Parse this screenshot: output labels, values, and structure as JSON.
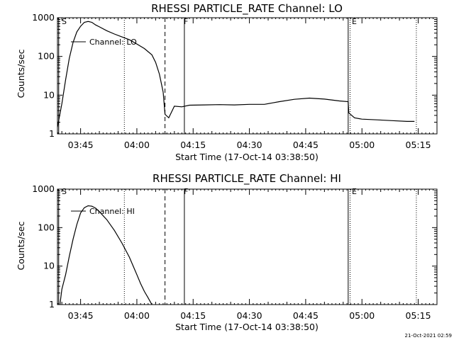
{
  "chart_data": [
    {
      "type": "line",
      "title": "RHESSI PARTICLE_RATE Channel: LO",
      "xlabel": "Start Time (17-Oct-14 03:38:50)",
      "ylabel": "Counts/sec",
      "y_scale": "log",
      "ylim": [
        1,
        1000
      ],
      "y_ticks": [
        1,
        10,
        100,
        1000
      ],
      "y_tick_labels": [
        "1",
        "10",
        "100",
        "1000"
      ],
      "xlim": [
        "03:38:50",
        "05:20:00"
      ],
      "x_tick_labels": [
        "03:45",
        "04:00",
        "04:15",
        "04:30",
        "04:45",
        "05:00",
        "05:15"
      ],
      "grid": false,
      "legend": {
        "position": "top-left",
        "entries": [
          "Channel: LO"
        ]
      },
      "markers": [
        {
          "label": "S",
          "time": "03:39:10",
          "style": "solid"
        },
        {
          "label": "",
          "time": "03:56:40",
          "style": "dotted"
        },
        {
          "label": "",
          "time": "04:07:30",
          "style": "dashed"
        },
        {
          "label": "F",
          "time": "04:12:40",
          "style": "solid"
        },
        {
          "label": "E",
          "time": "04:56:20",
          "style": "solid"
        },
        {
          "label": "",
          "time": "04:56:50",
          "style": "dotted"
        },
        {
          "label": "",
          "time": "05:14:30",
          "style": "dotted"
        }
      ],
      "series": [
        {
          "name": "Channel: LO",
          "x": [
            "03:38:50",
            "03:40:00",
            "03:41:00",
            "03:42:00",
            "03:43:00",
            "03:44:00",
            "03:45:00",
            "03:46:00",
            "03:47:00",
            "03:48:00",
            "03:49:00",
            "03:50:00",
            "03:52:00",
            "03:54:00",
            "03:56:00",
            "03:58:00",
            "04:00:00",
            "04:02:00",
            "04:04:00",
            "04:05:00",
            "04:06:00",
            "04:07:00",
            "04:07:30",
            "04:08:30",
            "04:10:00",
            "04:12:00",
            "04:14:00",
            "04:18:00",
            "04:22:00",
            "04:26:00",
            "04:30:00",
            "04:34:00",
            "04:38:00",
            "04:42:00",
            "04:46:00",
            "04:50:00",
            "04:54:00",
            "04:56:20",
            "04:56:30",
            "04:58:00",
            "05:00:00",
            "05:04:00",
            "05:08:00",
            "05:12:00",
            "05:14:00"
          ],
          "y": [
            1.5,
            6,
            25,
            90,
            230,
            430,
            600,
            760,
            800,
            760,
            650,
            580,
            460,
            380,
            320,
            270,
            210,
            160,
            110,
            70,
            35,
            12,
            3.2,
            2.6,
            5.2,
            5.0,
            5.5,
            5.6,
            5.7,
            5.6,
            5.8,
            5.8,
            6.8,
            7.8,
            8.4,
            7.9,
            7.1,
            6.8,
            3.5,
            2.6,
            2.4,
            2.3,
            2.2,
            2.1,
            2.1
          ]
        }
      ]
    },
    {
      "type": "line",
      "title": "RHESSI PARTICLE_RATE Channel: HI",
      "xlabel": "Start Time (17-Oct-14 03:38:50)",
      "ylabel": "Counts/sec",
      "y_scale": "log",
      "ylim": [
        1,
        1000
      ],
      "y_ticks": [
        1,
        10,
        100,
        1000
      ],
      "y_tick_labels": [
        "1",
        "10",
        "100",
        "1000"
      ],
      "xlim": [
        "03:38:50",
        "05:20:00"
      ],
      "x_tick_labels": [
        "03:45",
        "04:00",
        "04:15",
        "04:30",
        "04:45",
        "05:00",
        "05:15"
      ],
      "grid": false,
      "legend": {
        "position": "top-left",
        "entries": [
          "Channel: HI"
        ]
      },
      "markers": [
        {
          "label": "S",
          "time": "03:39:10",
          "style": "solid"
        },
        {
          "label": "",
          "time": "03:56:40",
          "style": "dotted"
        },
        {
          "label": "",
          "time": "04:07:30",
          "style": "dashed"
        },
        {
          "label": "F",
          "time": "04:12:40",
          "style": "solid"
        },
        {
          "label": "E",
          "time": "04:56:20",
          "style": "solid"
        },
        {
          "label": "",
          "time": "04:56:50",
          "style": "dotted"
        },
        {
          "label": "",
          "time": "05:14:30",
          "style": "dotted"
        }
      ],
      "series": [
        {
          "name": "Channel: HI",
          "x": [
            "03:39:30",
            "03:40:00",
            "03:41:00",
            "03:42:00",
            "03:43:00",
            "03:44:00",
            "03:45:00",
            "03:46:00",
            "03:47:00",
            "03:48:00",
            "03:49:00",
            "03:50:00",
            "03:52:00",
            "03:54:00",
            "03:56:00",
            "03:58:00",
            "04:00:00",
            "04:01:00",
            "04:02:00",
            "04:03:00",
            "04:04:00"
          ],
          "y": [
            1.0,
            2.5,
            6,
            18,
            50,
            120,
            240,
            330,
            370,
            360,
            320,
            260,
            160,
            85,
            40,
            17,
            6,
            3.5,
            2.2,
            1.5,
            1.0
          ]
        }
      ]
    }
  ],
  "footer": {
    "stamp": "21-Oct-2021 02:59"
  }
}
